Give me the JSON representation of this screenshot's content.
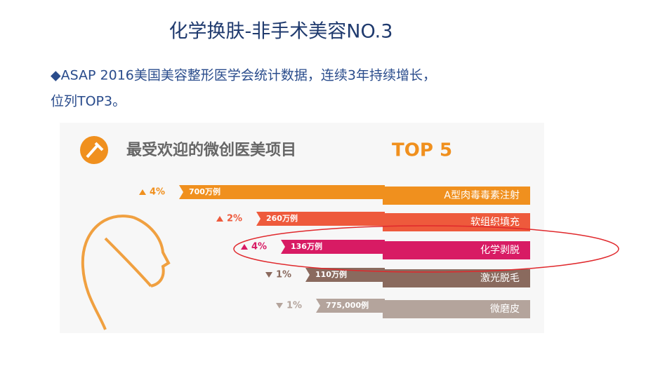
{
  "header": {
    "title": "化学换肤-非手术美容NO.3"
  },
  "bullet": {
    "lines": [
      "◆ASAP 2016美国美容整形医学会统计数据，连续3年持续增长，",
      "位列TOP3。"
    ]
  },
  "infographic": {
    "title": "最受欢迎的微创医美项目",
    "badge": "TOP 5",
    "items": [
      {
        "change": "4%",
        "direction": "up",
        "count": "700万例",
        "name": "A型肉毒毒素注射",
        "color": "#f0901e"
      },
      {
        "change": "2%",
        "direction": "up",
        "count": "260万例",
        "name": "软组织填充",
        "color": "#ee5a3c"
      },
      {
        "change": "4%",
        "direction": "up",
        "count": "136万例",
        "name": "化学剥脱",
        "color": "#d81b64"
      },
      {
        "change": "1%",
        "direction": "down",
        "count": "110万例",
        "name": "激光脱毛",
        "color": "#8a6a5e"
      },
      {
        "change": "1%",
        "direction": "down",
        "count": "775,000例",
        "name": "微磨皮",
        "color": "#b4a49c"
      }
    ]
  }
}
